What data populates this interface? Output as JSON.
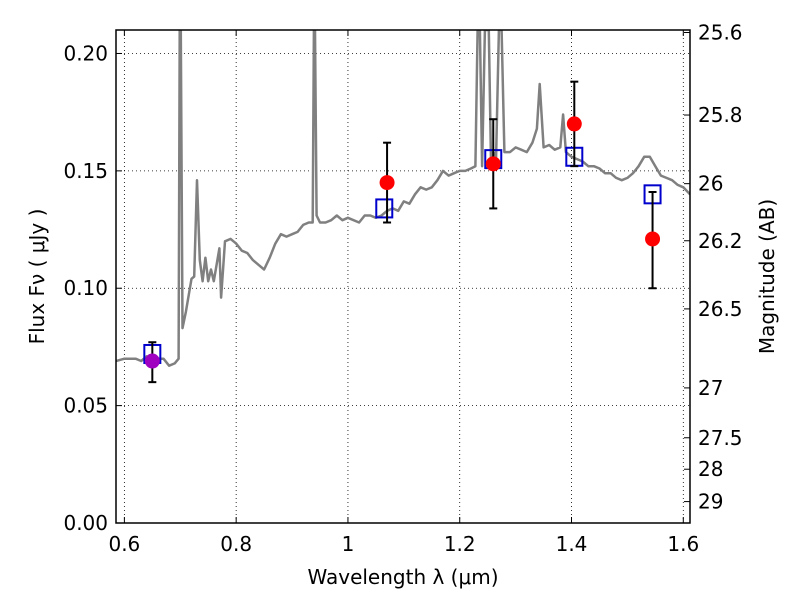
{
  "chart_data": {
    "type": "scatter",
    "xlabel": "Wavelength  λ (μm)",
    "ylabel": "Flux  Fν  ( μJy )",
    "y2label": "Magnitude (AB)",
    "xlim": [
      0.585,
      1.612
    ],
    "ylim": [
      0.0,
      0.21
    ],
    "grid": true,
    "x_ticks": [
      {
        "value": 0.6,
        "label": "0.6"
      },
      {
        "value": 0.8,
        "label": "0.8"
      },
      {
        "value": 1.0,
        "label": "1"
      },
      {
        "value": 1.2,
        "label": "1.2"
      },
      {
        "value": 1.4,
        "label": "1.4"
      },
      {
        "value": 1.6,
        "label": "1.6"
      }
    ],
    "y_ticks": [
      {
        "value": 0.0,
        "label": "0.00"
      },
      {
        "value": 0.05,
        "label": "0.05"
      },
      {
        "value": 0.1,
        "label": "0.10"
      },
      {
        "value": 0.15,
        "label": "0.15"
      },
      {
        "value": 0.2,
        "label": "0.20"
      }
    ],
    "y2_ticks": [
      {
        "value": 25.6,
        "label": "25.6"
      },
      {
        "value": 25.8,
        "label": "25.8"
      },
      {
        "value": 26.0,
        "label": "26"
      },
      {
        "value": 26.2,
        "label": "26.2"
      },
      {
        "value": 26.5,
        "label": "26.5"
      },
      {
        "value": 27.0,
        "label": "27"
      },
      {
        "value": 27.5,
        "label": "27.5"
      },
      {
        "value": 28.0,
        "label": "28"
      },
      {
        "value": 29.0,
        "label": "29"
      }
    ],
    "colors": {
      "model_line": "#808080",
      "observed": "#ff0000",
      "observed_optical": "#a000c0",
      "model_box": "#0000cc",
      "errorbar": "#000000"
    },
    "observed": [
      {
        "x": 0.65,
        "y": 0.069,
        "err_low": 0.009,
        "err_high": 0.008,
        "color": "#a000c0"
      },
      {
        "x": 1.07,
        "y": 0.145,
        "err_low": 0.017,
        "err_high": 0.017,
        "color": "#ff0000"
      },
      {
        "x": 1.26,
        "y": 0.153,
        "err_low": 0.019,
        "err_high": 0.019,
        "color": "#ff0000"
      },
      {
        "x": 1.405,
        "y": 0.17,
        "err_low": 0.018,
        "err_high": 0.018,
        "color": "#ff0000"
      },
      {
        "x": 1.545,
        "y": 0.121,
        "err_low": 0.021,
        "err_high": 0.02,
        "color": "#ff0000"
      }
    ],
    "model_photometry": [
      {
        "x": 0.65,
        "y": 0.072
      },
      {
        "x": 1.065,
        "y": 0.134
      },
      {
        "x": 1.26,
        "y": 0.155
      },
      {
        "x": 1.405,
        "y": 0.156
      },
      {
        "x": 1.545,
        "y": 0.14
      }
    ],
    "model_spectrum": [
      [
        0.585,
        0.069
      ],
      [
        0.6,
        0.07
      ],
      [
        0.62,
        0.07
      ],
      [
        0.63,
        0.069
      ],
      [
        0.64,
        0.071
      ],
      [
        0.66,
        0.07
      ],
      [
        0.67,
        0.07
      ],
      [
        0.68,
        0.067
      ],
      [
        0.69,
        0.068
      ],
      [
        0.697,
        0.07
      ],
      [
        0.699,
        0.21
      ],
      [
        0.701,
        0.21
      ],
      [
        0.704,
        0.083
      ],
      [
        0.71,
        0.09
      ],
      [
        0.72,
        0.104
      ],
      [
        0.725,
        0.105
      ],
      [
        0.73,
        0.146
      ],
      [
        0.735,
        0.112
      ],
      [
        0.74,
        0.103
      ],
      [
        0.745,
        0.113
      ],
      [
        0.75,
        0.103
      ],
      [
        0.755,
        0.108
      ],
      [
        0.76,
        0.103
      ],
      [
        0.77,
        0.117
      ],
      [
        0.773,
        0.096
      ],
      [
        0.78,
        0.12
      ],
      [
        0.79,
        0.121
      ],
      [
        0.8,
        0.119
      ],
      [
        0.81,
        0.116
      ],
      [
        0.82,
        0.115
      ],
      [
        0.83,
        0.112
      ],
      [
        0.84,
        0.11
      ],
      [
        0.85,
        0.108
      ],
      [
        0.86,
        0.113
      ],
      [
        0.87,
        0.119
      ],
      [
        0.88,
        0.123
      ],
      [
        0.89,
        0.122
      ],
      [
        0.9,
        0.123
      ],
      [
        0.91,
        0.124
      ],
      [
        0.92,
        0.127
      ],
      [
        0.93,
        0.128
      ],
      [
        0.937,
        0.128
      ],
      [
        0.939,
        0.21
      ],
      [
        0.941,
        0.21
      ],
      [
        0.944,
        0.131
      ],
      [
        0.95,
        0.128
      ],
      [
        0.96,
        0.128
      ],
      [
        0.97,
        0.129
      ],
      [
        0.98,
        0.131
      ],
      [
        0.99,
        0.129
      ],
      [
        1.0,
        0.13
      ],
      [
        1.02,
        0.128
      ],
      [
        1.03,
        0.131
      ],
      [
        1.04,
        0.131
      ],
      [
        1.05,
        0.13
      ],
      [
        1.06,
        0.131
      ],
      [
        1.07,
        0.133
      ],
      [
        1.08,
        0.134
      ],
      [
        1.09,
        0.133
      ],
      [
        1.1,
        0.137
      ],
      [
        1.11,
        0.136
      ],
      [
        1.12,
        0.14
      ],
      [
        1.13,
        0.143
      ],
      [
        1.14,
        0.142
      ],
      [
        1.15,
        0.143
      ],
      [
        1.16,
        0.146
      ],
      [
        1.17,
        0.15
      ],
      [
        1.18,
        0.148
      ],
      [
        1.19,
        0.149
      ],
      [
        1.2,
        0.15
      ],
      [
        1.21,
        0.15
      ],
      [
        1.22,
        0.151
      ],
      [
        1.228,
        0.152
      ],
      [
        1.232,
        0.21
      ],
      [
        1.236,
        0.21
      ],
      [
        1.24,
        0.152
      ],
      [
        1.245,
        0.21
      ],
      [
        1.252,
        0.21
      ],
      [
        1.256,
        0.154
      ],
      [
        1.26,
        0.158
      ],
      [
        1.265,
        0.156
      ],
      [
        1.27,
        0.21
      ],
      [
        1.275,
        0.21
      ],
      [
        1.28,
        0.158
      ],
      [
        1.29,
        0.158
      ],
      [
        1.3,
        0.16
      ],
      [
        1.31,
        0.159
      ],
      [
        1.32,
        0.158
      ],
      [
        1.33,
        0.162
      ],
      [
        1.338,
        0.168
      ],
      [
        1.343,
        0.187
      ],
      [
        1.35,
        0.16
      ],
      [
        1.36,
        0.161
      ],
      [
        1.37,
        0.159
      ],
      [
        1.38,
        0.16
      ],
      [
        1.385,
        0.174
      ],
      [
        1.39,
        0.158
      ],
      [
        1.4,
        0.156
      ],
      [
        1.41,
        0.155
      ],
      [
        1.42,
        0.154
      ],
      [
        1.43,
        0.152
      ],
      [
        1.44,
        0.152
      ],
      [
        1.45,
        0.151
      ],
      [
        1.46,
        0.149
      ],
      [
        1.47,
        0.149
      ],
      [
        1.48,
        0.147
      ],
      [
        1.49,
        0.146
      ],
      [
        1.5,
        0.147
      ],
      [
        1.51,
        0.149
      ],
      [
        1.52,
        0.152
      ],
      [
        1.53,
        0.156
      ],
      [
        1.54,
        0.156
      ],
      [
        1.55,
        0.152
      ],
      [
        1.56,
        0.148
      ],
      [
        1.57,
        0.147
      ],
      [
        1.58,
        0.146
      ],
      [
        1.59,
        0.144
      ],
      [
        1.6,
        0.143
      ],
      [
        1.612,
        0.14
      ]
    ]
  }
}
